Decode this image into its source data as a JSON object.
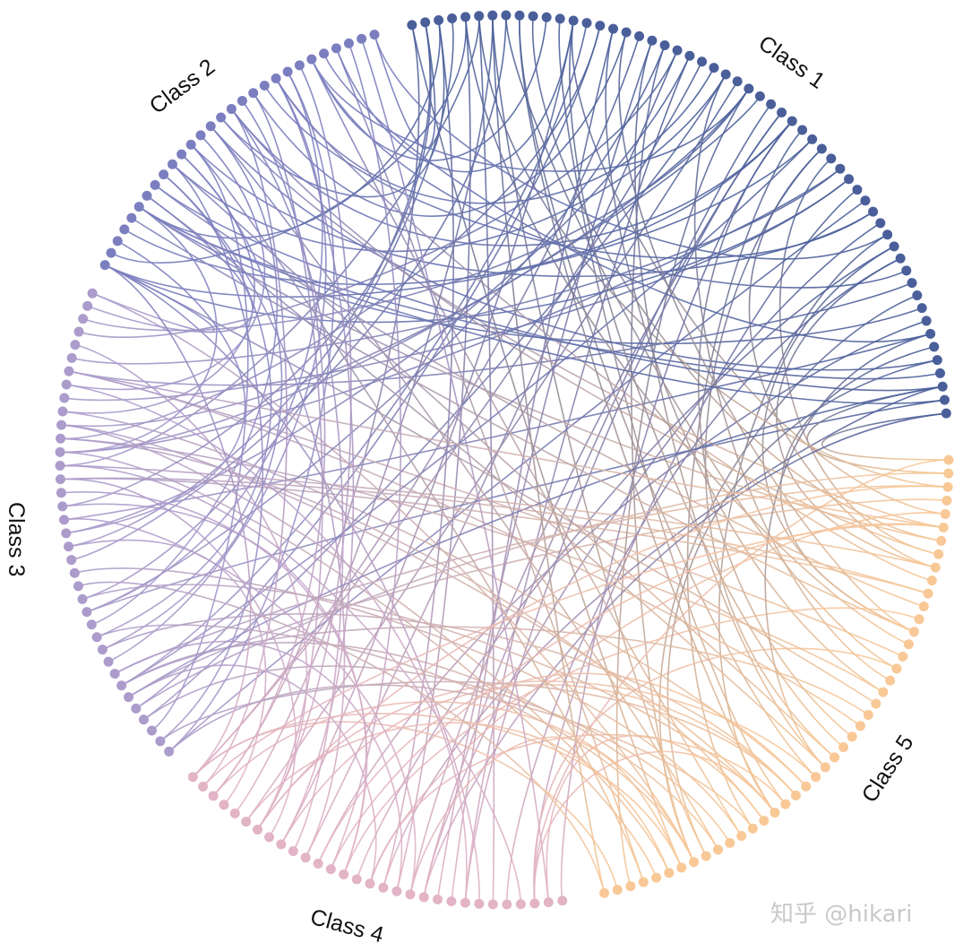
{
  "chart_data": {
    "type": "hierarchical-edge-bundling",
    "title": "",
    "groups": [
      {
        "name": "Class 1",
        "color": "#4a5f9a",
        "node_count": 56
      },
      {
        "name": "Class 5",
        "color": "#f8c896",
        "node_count": 45
      },
      {
        "name": "Class 4",
        "color": "#e2b4c6",
        "node_count": 30
      },
      {
        "name": "Class 3",
        "color": "#ab9ccc",
        "node_count": 37
      },
      {
        "name": "Class 2",
        "color": "#7b7fbf",
        "node_count": 28
      }
    ],
    "edge_coloring": "gradient from source group color to target group color",
    "layout": "circular"
  },
  "labels": {
    "class1": "Class 1",
    "class2": "Class 2",
    "class3": "Class 3",
    "class4": "Class 4",
    "class5": "Class 5"
  },
  "watermark": "知乎 @hikari"
}
